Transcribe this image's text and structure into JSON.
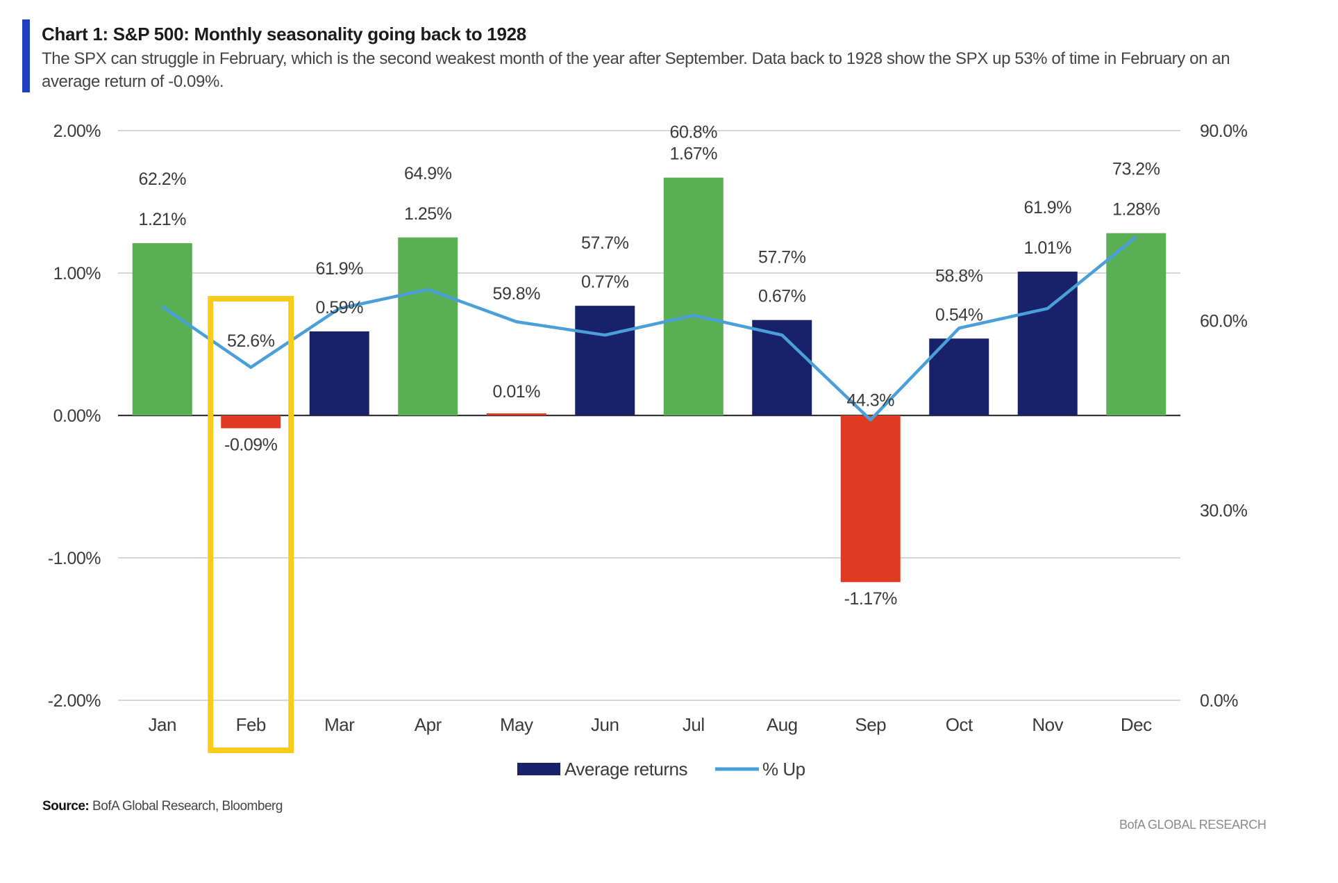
{
  "header": {
    "title": "Chart 1: S&P 500: Monthly seasonality going back to 1928",
    "subtitle": "The SPX can struggle in February, which is the second weakest month of the year after September. Data back to 1928 show the SPX up 53% of time in February on an average return of -0.09%."
  },
  "footer": {
    "source_label": "Source:",
    "source_text": "BofA Global Research, Bloomberg",
    "branding": "BofA GLOBAL RESEARCH"
  },
  "colors": {
    "bar_positive_green": "#5aaf55",
    "bar_positive_navy": "#17226a",
    "bar_negative": "#e03a22",
    "line": "#4a9fd8",
    "highlight": "#f7cb1b",
    "accent": "#1f3fbf"
  },
  "chart_data": {
    "type": "bar",
    "categories": [
      "Jan",
      "Feb",
      "Mar",
      "Apr",
      "May",
      "Jun",
      "Jul",
      "Aug",
      "Sep",
      "Oct",
      "Nov",
      "Dec"
    ],
    "series": [
      {
        "name": "Average returns",
        "type": "bar",
        "axis": "left",
        "values": [
          1.21,
          -0.09,
          0.59,
          1.25,
          0.01,
          0.77,
          1.67,
          0.67,
          -1.17,
          0.54,
          1.01,
          1.28
        ],
        "labels": [
          "1.21%",
          "-0.09%",
          "0.59%",
          "1.25%",
          "0.01%",
          "0.77%",
          "1.67%",
          "0.67%",
          "-1.17%",
          "0.54%",
          "1.01%",
          "1.28%"
        ],
        "bar_colors": [
          "green",
          "red",
          "navy",
          "green",
          "red",
          "navy",
          "green",
          "navy",
          "red",
          "navy",
          "navy",
          "green"
        ]
      },
      {
        "name": "% Up",
        "type": "line",
        "axis": "right",
        "values": [
          62.2,
          52.6,
          61.9,
          64.9,
          59.8,
          57.7,
          60.8,
          57.7,
          44.3,
          58.8,
          61.9,
          73.2
        ],
        "labels": [
          "62.2%",
          "52.6%",
          "61.9%",
          "64.9%",
          "59.8%",
          "57.7%",
          "60.8%",
          "57.7%",
          "44.3%",
          "58.8%",
          "61.9%",
          "73.2%"
        ]
      }
    ],
    "y_left": {
      "lim": [
        -2,
        2
      ],
      "ticks": [
        2,
        1,
        0,
        -1,
        -2
      ],
      "tick_labels": [
        "2.00%",
        "1.00%",
        "0.00%",
        "-1.00%",
        "-2.00%"
      ]
    },
    "y_right": {
      "lim": [
        0,
        90
      ],
      "ticks": [
        90,
        60,
        30,
        0
      ],
      "tick_labels": [
        "90.0%",
        "60.0%",
        "30.0%",
        "0.0%"
      ]
    },
    "grid": true,
    "legend": {
      "placement": "bottom-center",
      "entries": [
        "Average returns",
        "% Up"
      ]
    },
    "highlight_category": "Feb"
  }
}
